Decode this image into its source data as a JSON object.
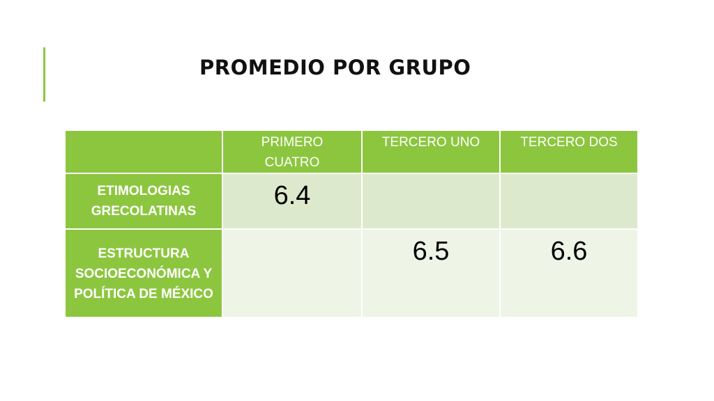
{
  "slide": {
    "title": "PROMEDIO POR GRUPO"
  },
  "table": {
    "headers": [
      "",
      "PRIMERO CUATRO",
      "TERCERO UNO",
      "TERCERO DOS"
    ],
    "rows": [
      {
        "label": "ETIMOLOGIAS GRECOLATINAS",
        "values": [
          "6.4",
          "",
          ""
        ]
      },
      {
        "label": "ESTRUCTURA SOCIOECONÓMICA Y POLÍTICA DE MÉXICO",
        "values": [
          "",
          "6.5",
          "6.6"
        ]
      }
    ]
  },
  "colors": {
    "accent": "#8cc63f",
    "row_light_1": "#dde9cc",
    "row_light_2": "#eef4e6"
  }
}
